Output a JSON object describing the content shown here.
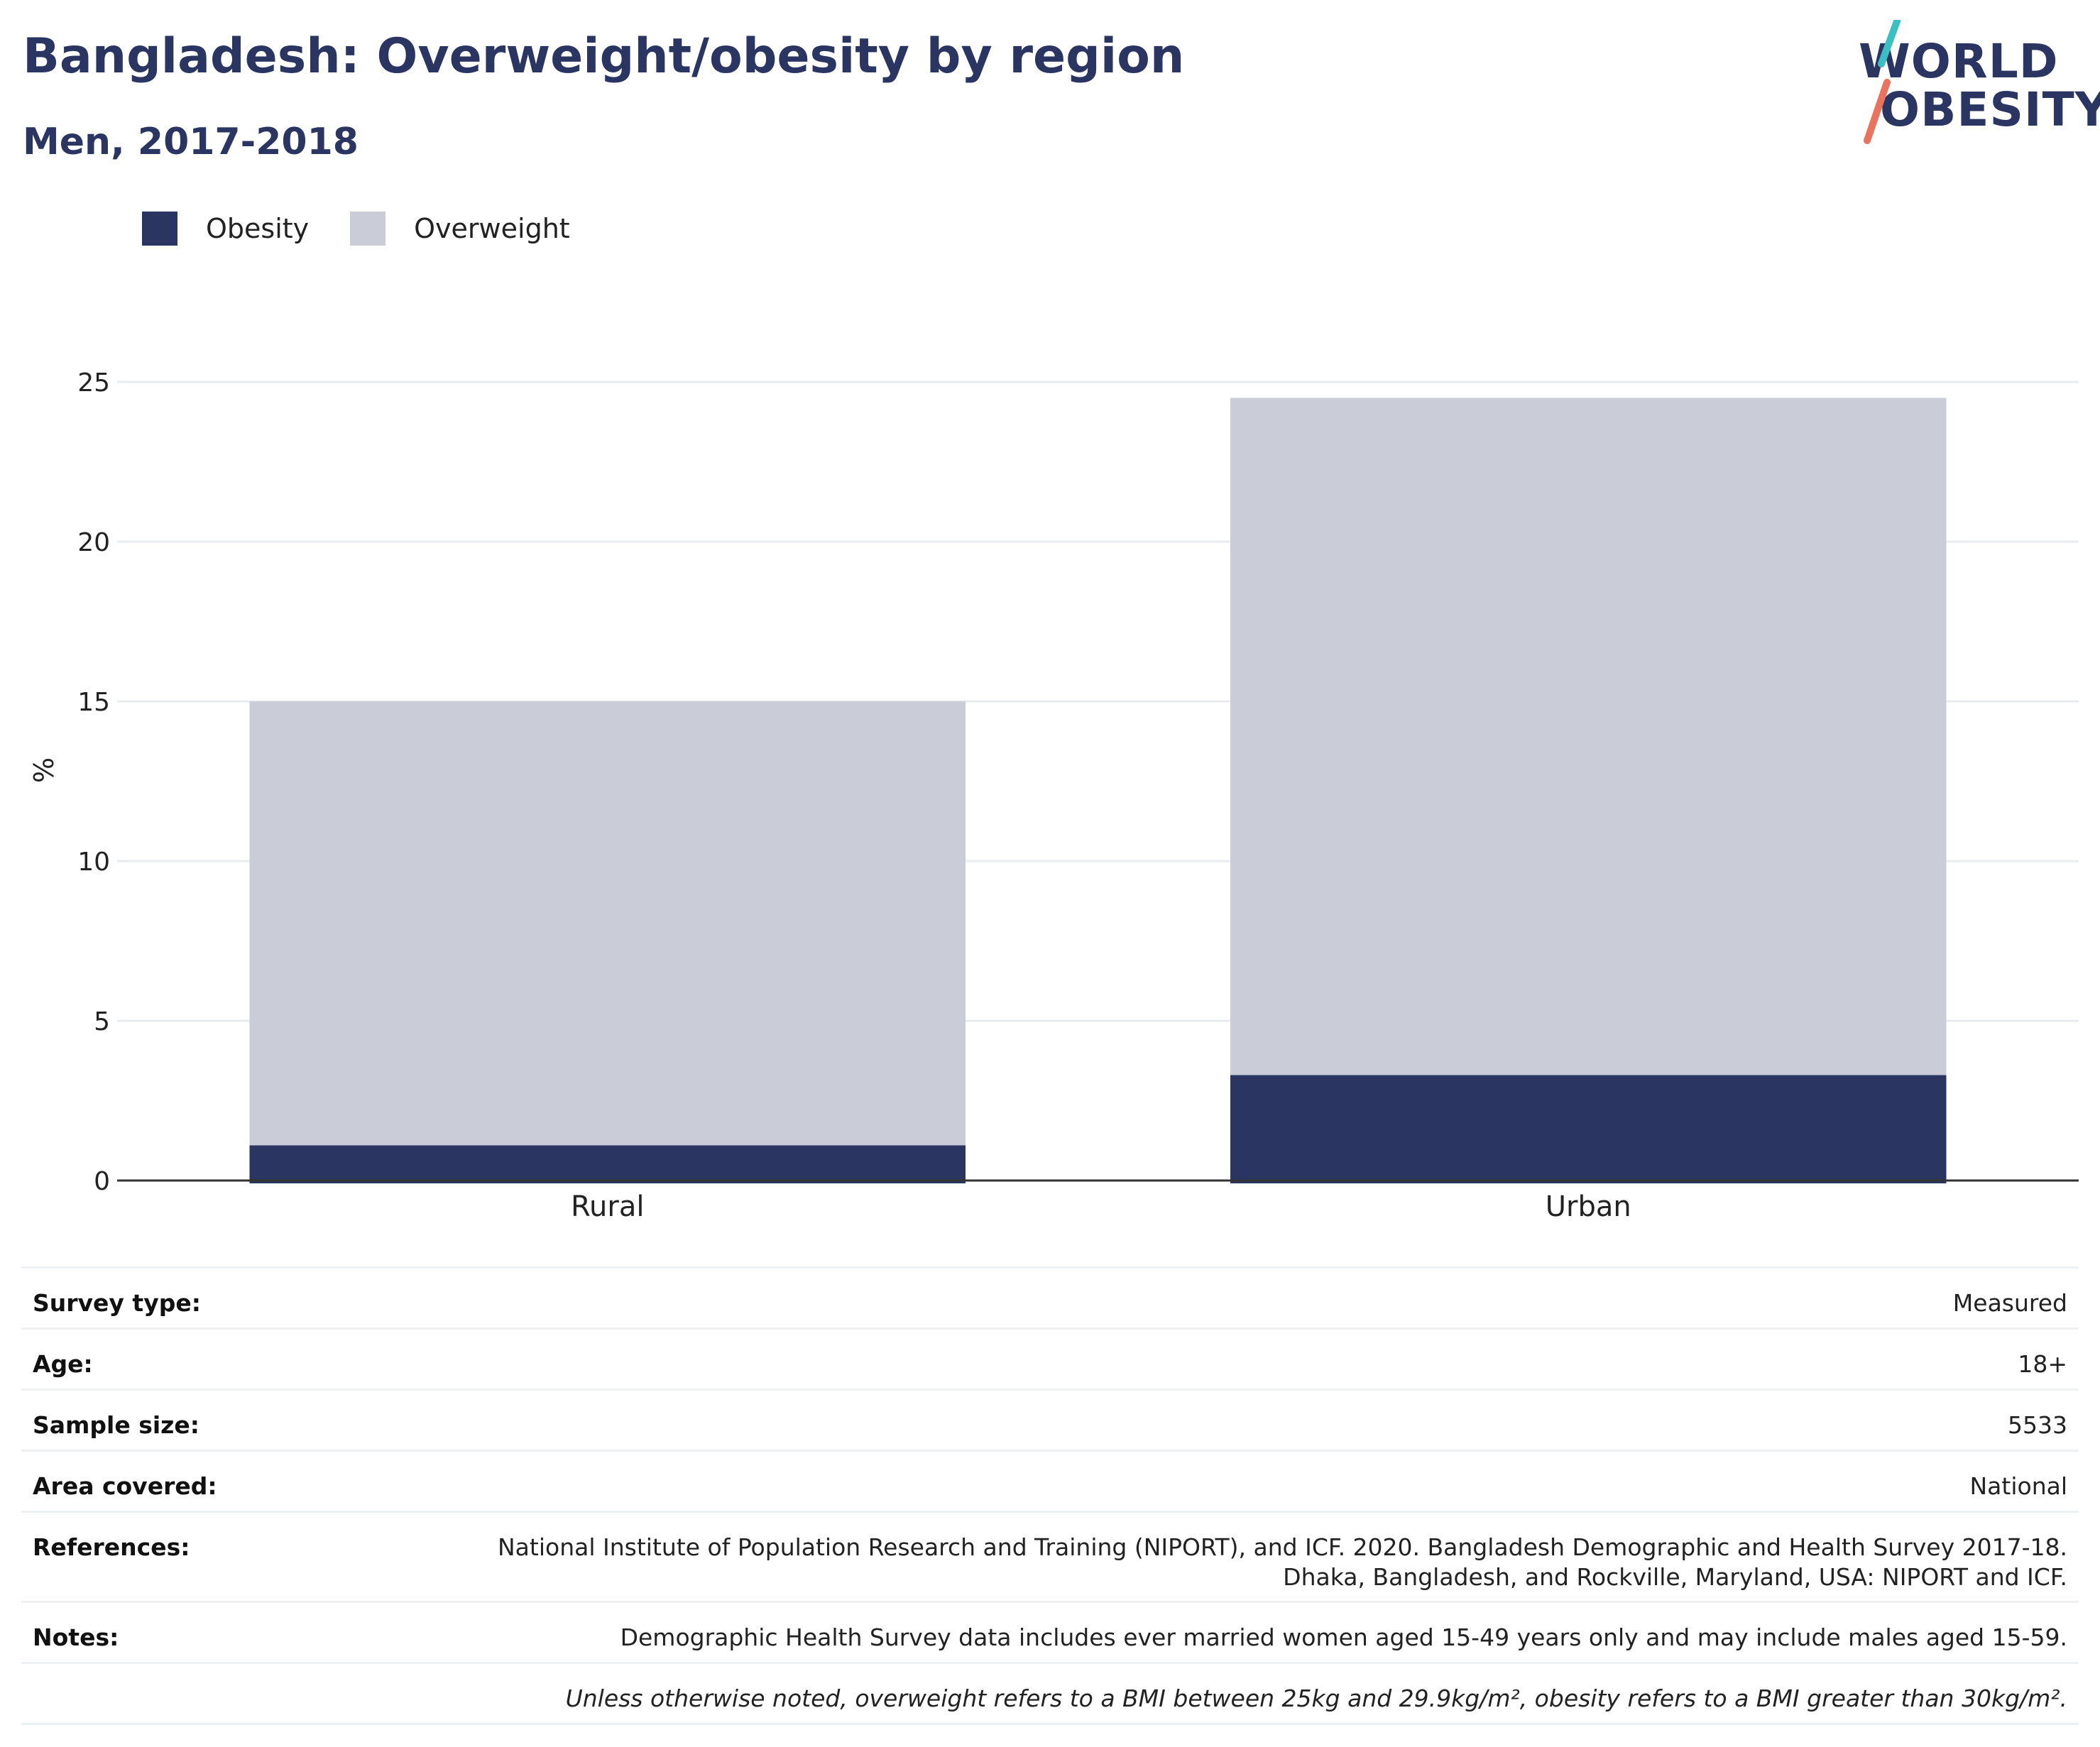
{
  "header": {
    "title": "Bangladesh: Overweight/obesity by region",
    "subtitle": "Men, 2017-2018"
  },
  "logo": {
    "line1": "WORLD",
    "line2": "OBESITY",
    "colors": {
      "text": "#2a3561",
      "slash_top": "#3bbfc2",
      "slash_bottom": "#e8735f"
    }
  },
  "colors": {
    "obesity": "#2a3561",
    "overweight": "#cacdd8",
    "gridline": "#e9ebee",
    "axis": "#333333"
  },
  "chart_data": {
    "type": "bar",
    "stacked": true,
    "categories": [
      "Rural",
      "Urban"
    ],
    "series": [
      {
        "name": "Obesity",
        "values": [
          1.1,
          3.3
        ],
        "color": "#2a3561"
      },
      {
        "name": "Overweight",
        "values": [
          13.9,
          21.2
        ],
        "color": "#cacdd8"
      }
    ],
    "ylabel": "%",
    "ylim": [
      0,
      25
    ],
    "yticks": [
      "0",
      "5",
      "10",
      "15",
      "20",
      "25"
    ],
    "grid": true,
    "legend_position": "top-left"
  },
  "metadata": [
    {
      "key": "Survey type:",
      "value": "Measured"
    },
    {
      "key": "Age:",
      "value": "18+"
    },
    {
      "key": "Sample size:",
      "value": "5533"
    },
    {
      "key": "Area covered:",
      "value": "National"
    },
    {
      "key": "References:",
      "value_line1": "National Institute of Population Research and Training (NIPORT), and ICF. 2020. Bangladesh Demographic and Health Survey 2017-18.",
      "value_line2": "Dhaka, Bangladesh, and Rockville, Maryland, USA: NIPORT and ICF."
    },
    {
      "key": "Notes:",
      "value": "Demographic Health Survey data includes ever married women aged 15-49 years only and may include males aged 15-59."
    },
    {
      "key": "",
      "value": "Unless otherwise noted, overweight refers to a BMI between 25kg and 29.9kg/m², obesity refers to a BMI greater than 30kg/m²."
    }
  ]
}
